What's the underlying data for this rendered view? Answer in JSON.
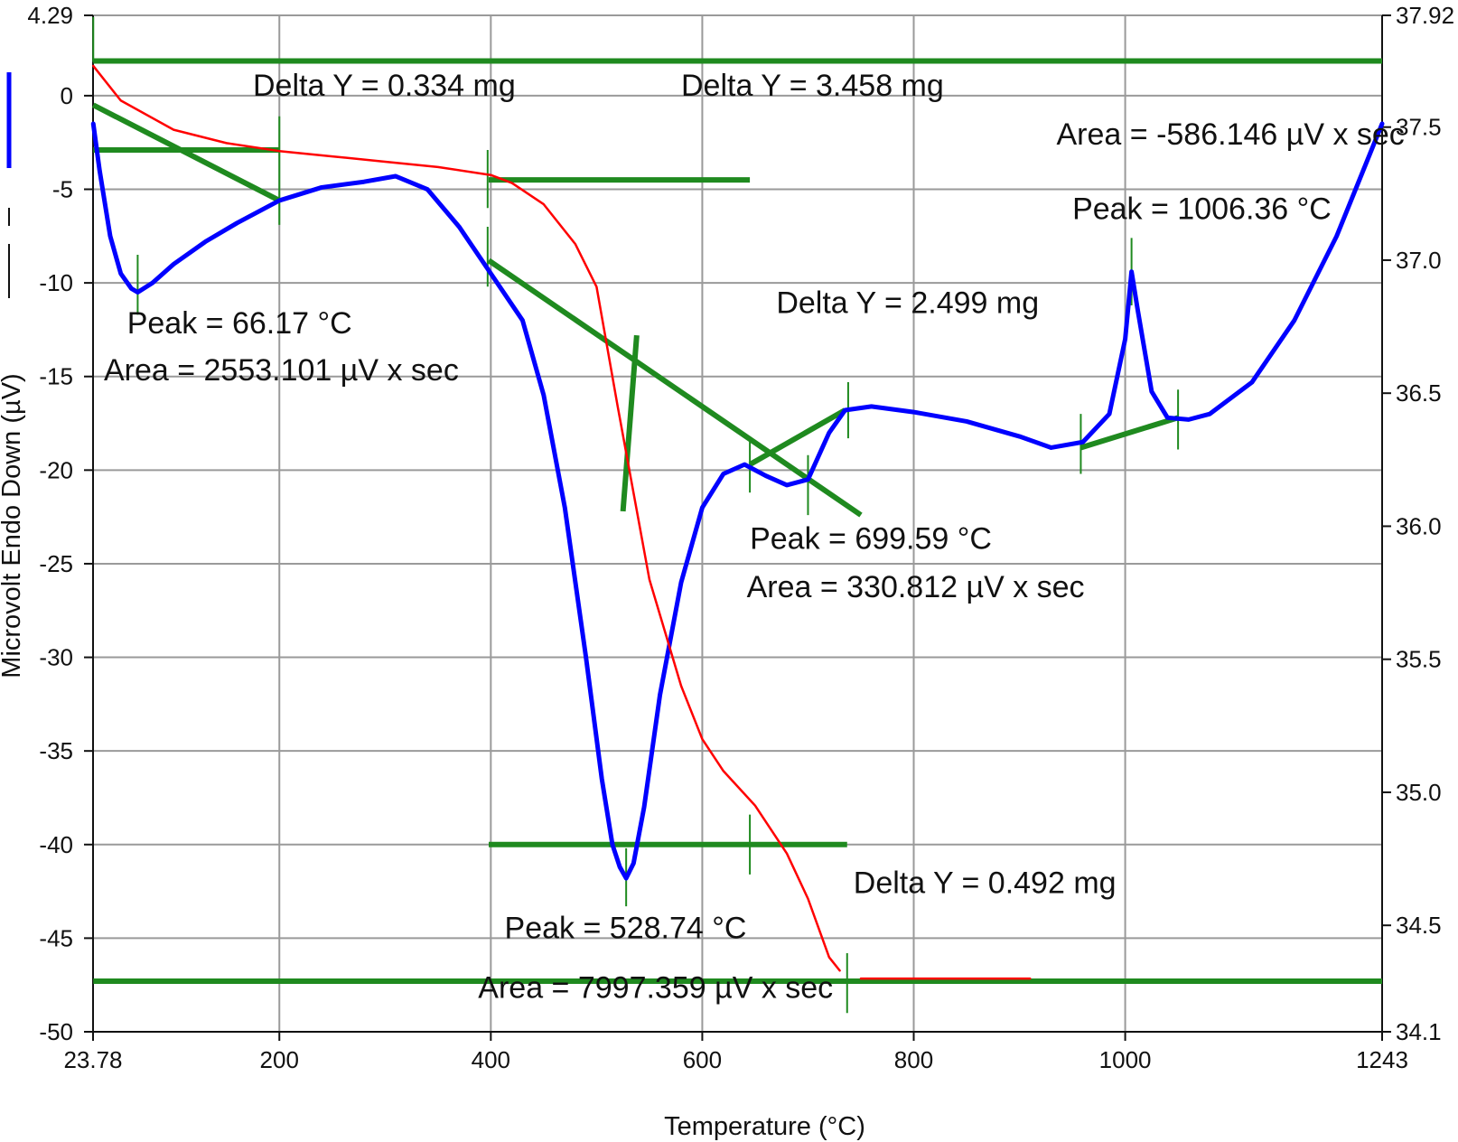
{
  "chart_data": {
    "type": "line",
    "xlabel": "Temperature (°C)",
    "ylabel": "Microvolt Endo Down (µV)",
    "xlim": [
      23.78,
      1243
    ],
    "ylim": [
      -50,
      4.29
    ],
    "y2lim": [
      34.1,
      37.92
    ],
    "grid": true,
    "x_ticks": [
      "23.78",
      "200",
      "400",
      "600",
      "800",
      "1000",
      "1243"
    ],
    "x_tick_values": [
      23.78,
      200,
      400,
      600,
      800,
      1000,
      1243
    ],
    "y_ticks": [
      "4.29",
      "0",
      "-5",
      "-10",
      "-15",
      "-20",
      "-25",
      "-30",
      "-35",
      "-40",
      "-45",
      "-50"
    ],
    "y_tick_values": [
      4.29,
      0,
      -5,
      -10,
      -15,
      -20,
      -25,
      -30,
      -35,
      -40,
      -45,
      -50
    ],
    "y2_ticks": [
      "37.92",
      "37.5",
      "37.0",
      "36.5",
      "36.0",
      "35.5",
      "35.0",
      "34.5",
      "34.1"
    ],
    "y2_tick_values": [
      37.92,
      37.5,
      37.0,
      36.5,
      36.0,
      35.5,
      35.0,
      34.5,
      34.1
    ],
    "series": [
      {
        "axis": "left",
        "color": "#0000ff",
        "x": [
          24,
          30,
          40,
          50,
          60,
          66,
          80,
          100,
          130,
          160,
          200,
          240,
          280,
          310,
          340,
          370,
          400,
          430,
          450,
          470,
          490,
          505,
          515,
          522,
          528,
          535,
          545,
          560,
          580,
          600,
          620,
          640,
          660,
          680,
          700,
          720,
          735,
          760,
          800,
          850,
          900,
          930,
          960,
          985,
          1000,
          1006,
          1012,
          1025,
          1040,
          1060,
          1080,
          1120,
          1160,
          1200,
          1243
        ],
        "y": [
          -1.5,
          -4,
          -7.5,
          -9.5,
          -10.3,
          -10.5,
          -10,
          -9,
          -7.8,
          -6.8,
          -5.6,
          -4.9,
          -4.6,
          -4.3,
          -5,
          -7,
          -9.5,
          -12,
          -16,
          -22,
          -30,
          -36.5,
          -40,
          -41.2,
          -41.8,
          -41,
          -38,
          -32,
          -26,
          -22,
          -20.2,
          -19.7,
          -20.3,
          -20.8,
          -20.5,
          -18,
          -16.8,
          -16.6,
          -16.9,
          -17.4,
          -18.2,
          -18.8,
          -18.5,
          -17,
          -13,
          -9.4,
          -11.5,
          -15.8,
          -17.2,
          -17.3,
          -17,
          -15.3,
          -12,
          -7.5,
          -1.5
        ]
      },
      {
        "axis": "right",
        "color": "#ff0000",
        "x": [
          24,
          50,
          100,
          150,
          200,
          250,
          300,
          350,
          400,
          420,
          450,
          480,
          500,
          520,
          550,
          580,
          600,
          620,
          650,
          680,
          700,
          720,
          730
        ],
        "y": [
          37.73,
          37.6,
          37.49,
          37.44,
          37.41,
          37.39,
          37.37,
          37.35,
          37.32,
          37.29,
          37.21,
          37.06,
          36.9,
          36.45,
          35.8,
          35.4,
          35.2,
          35.08,
          34.95,
          34.77,
          34.6,
          34.38,
          34.33
        ]
      },
      {
        "axis": "right",
        "color": "#ff0000",
        "x": [
          750,
          790,
          830,
          870,
          910
        ],
        "y": [
          34.3,
          34.3,
          34.3,
          34.3,
          34.3
        ]
      }
    ],
    "annotations": [
      {
        "text": "Delta Y = 0.334 mg",
        "x": 175,
        "y": 0
      },
      {
        "text": "Delta Y = 3.458 mg",
        "x": 580,
        "y": 0
      },
      {
        "text": "Area = -586.146 µV x sec",
        "x": 935,
        "y": -2.6
      },
      {
        "text": "Peak = 1006.36 °C",
        "x": 950,
        "y": -6.6
      },
      {
        "text": "Delta Y = 2.499 mg",
        "x": 670,
        "y": -11.6
      },
      {
        "text": "Peak = 66.17 °C",
        "x": 56,
        "y": -12.7
      },
      {
        "text": "Area = 2553.101 µV x sec",
        "x": 34,
        "y": -15.2
      },
      {
        "text": "Peak = 699.59 °C",
        "x": 645,
        "y": -24.2
      },
      {
        "text": "Area = 330.812 µV x sec",
        "x": 642,
        "y": -26.8
      },
      {
        "text": "Delta Y = 0.492 mg",
        "x": 743,
        "y": -42.6
      },
      {
        "text": "Peak = 528.74 °C",
        "x": 413,
        "y": -45
      },
      {
        "text": "Area = 7997.359 µV x sec",
        "x": 388,
        "y": -48.2
      }
    ],
    "analysis_lines": [
      {
        "x": [
          24,
          200
        ],
        "y": [
          -2.9,
          -2.9
        ]
      },
      {
        "x": [
          24,
          1243
        ],
        "y": [
          1.85,
          1.85
        ]
      },
      {
        "x": [
          398,
          645
        ],
        "y": [
          -4.5,
          -4.5
        ]
      },
      {
        "x": [
          24,
          200
        ],
        "y": [
          -0.5,
          -5.6
        ]
      },
      {
        "x": [
          398,
          750
        ],
        "y": [
          -8.8,
          -22.4
        ]
      },
      {
        "x": [
          525,
          538
        ],
        "y": [
          -22.2,
          -12.8
        ]
      },
      {
        "x": [
          645,
          735
        ],
        "y": [
          -19.7,
          -16.8
        ]
      },
      {
        "x": [
          958,
          1050
        ],
        "y": [
          -18.8,
          -17.2
        ]
      },
      {
        "x": [
          398,
          737
        ],
        "y": [
          -40,
          -40
        ]
      },
      {
        "x": [
          24,
          1243
        ],
        "y": [
          -47.3,
          -47.3
        ]
      }
    ],
    "analysis_ticks": [
      {
        "x": 24,
        "y1": 1.8,
        "y2": 4.2
      },
      {
        "x": 66,
        "y1": -8.5,
        "y2": -11.7
      },
      {
        "x": 200,
        "y1": -1.1,
        "y2": -6.9
      },
      {
        "x": 397,
        "y1": -2.9,
        "y2": -6
      },
      {
        "x": 397,
        "y1": -7,
        "y2": -10.2
      },
      {
        "x": 645,
        "y1": -18.2,
        "y2": -21.2
      },
      {
        "x": 700,
        "y1": -19.2,
        "y2": -22.4
      },
      {
        "x": 738,
        "y1": -15.3,
        "y2": -18.3
      },
      {
        "x": 958,
        "y1": -17,
        "y2": -20.2
      },
      {
        "x": 1006,
        "y1": -7.6,
        "y2": -11.2
      },
      {
        "x": 1050,
        "y1": -15.7,
        "y2": -18.9
      },
      {
        "x": 528,
        "y1": -40.2,
        "y2": -43.3
      },
      {
        "x": 645,
        "y1": -38.4,
        "y2": -41.6
      },
      {
        "x": 737,
        "y1": -45.8,
        "y2": -49
      }
    ],
    "legend": [
      {
        "color": "#0000ff",
        "style": "solid"
      },
      {
        "color": "#111111",
        "style": "dashed"
      }
    ],
    "colors": {
      "grid": "#9a9a9a",
      "axis": "#111111",
      "analysis": "#1f8a1f"
    }
  }
}
